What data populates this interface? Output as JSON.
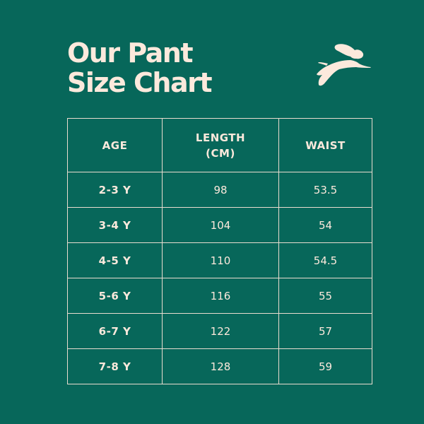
{
  "title": {
    "line1": "Our Pant",
    "line2": "Size Chart"
  },
  "logo": {
    "icon": "leaping-rabbit-icon"
  },
  "colors": {
    "background": "#07675a",
    "foreground": "#fce9dc"
  },
  "table": {
    "headers": {
      "age": "AGE",
      "length_line1": "LENGTH",
      "length_line2": "(CM)",
      "waist": "WAIST"
    },
    "rows": [
      {
        "age": "2-3 Y",
        "length": "98",
        "waist": "53.5"
      },
      {
        "age": "3-4 Y",
        "length": "104",
        "waist": "54"
      },
      {
        "age": "4-5 Y",
        "length": "110",
        "waist": "54.5"
      },
      {
        "age": "5-6 Y",
        "length": "116",
        "waist": "55"
      },
      {
        "age": "6-7 Y",
        "length": "122",
        "waist": "57"
      },
      {
        "age": "7-8 Y",
        "length": "128",
        "waist": "59"
      }
    ]
  }
}
